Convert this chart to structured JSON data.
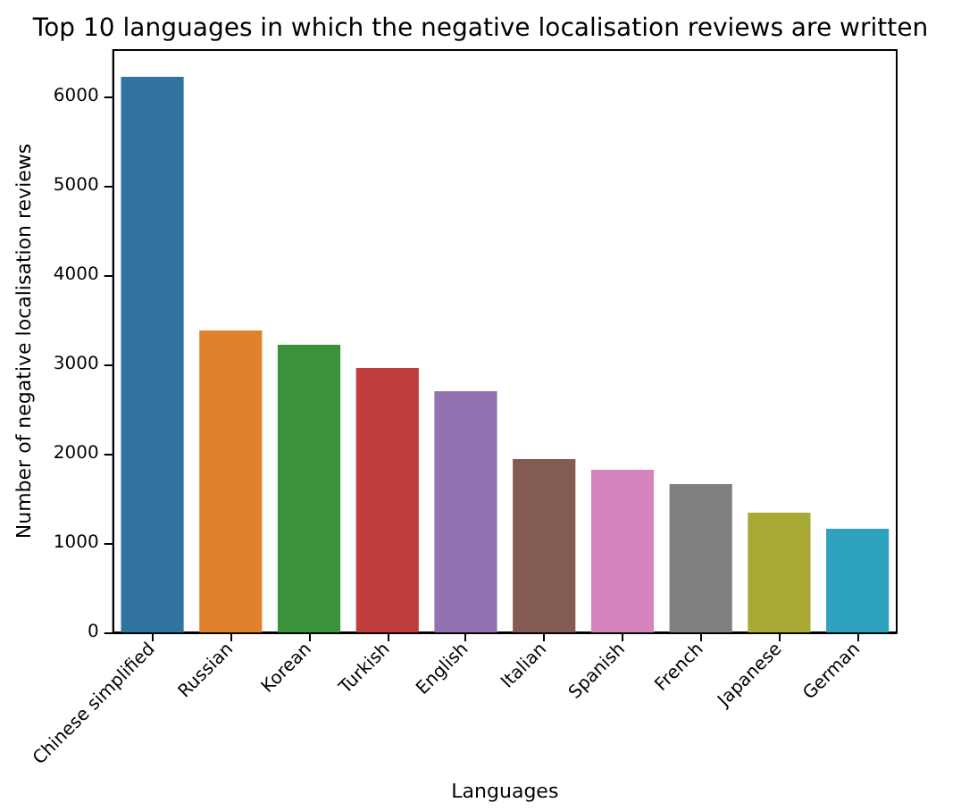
{
  "chart_data": {
    "type": "bar",
    "title": "Top 10 languages in which the negative localisation reviews are written",
    "xlabel": "Languages",
    "ylabel": "Number of negative localisation reviews",
    "categories": [
      "Chinese simplified",
      "Russian",
      "Korean",
      "Turkish",
      "English",
      "Italian",
      "Spanish",
      "French",
      "Japanese",
      "German"
    ],
    "values": [
      6220,
      3380,
      3220,
      2960,
      2700,
      1940,
      1820,
      1660,
      1340,
      1160
    ],
    "colors": [
      "#3274a1",
      "#e1812c",
      "#3a923a",
      "#c03d3e",
      "#9372b2",
      "#845b53",
      "#d684bd",
      "#7f7f7f",
      "#a9aa35",
      "#2ea2bf"
    ],
    "ylim": [
      0,
      6520
    ],
    "yticks": [
      0,
      1000,
      2000,
      3000,
      4000,
      5000,
      6000
    ],
    "grid": false
  }
}
